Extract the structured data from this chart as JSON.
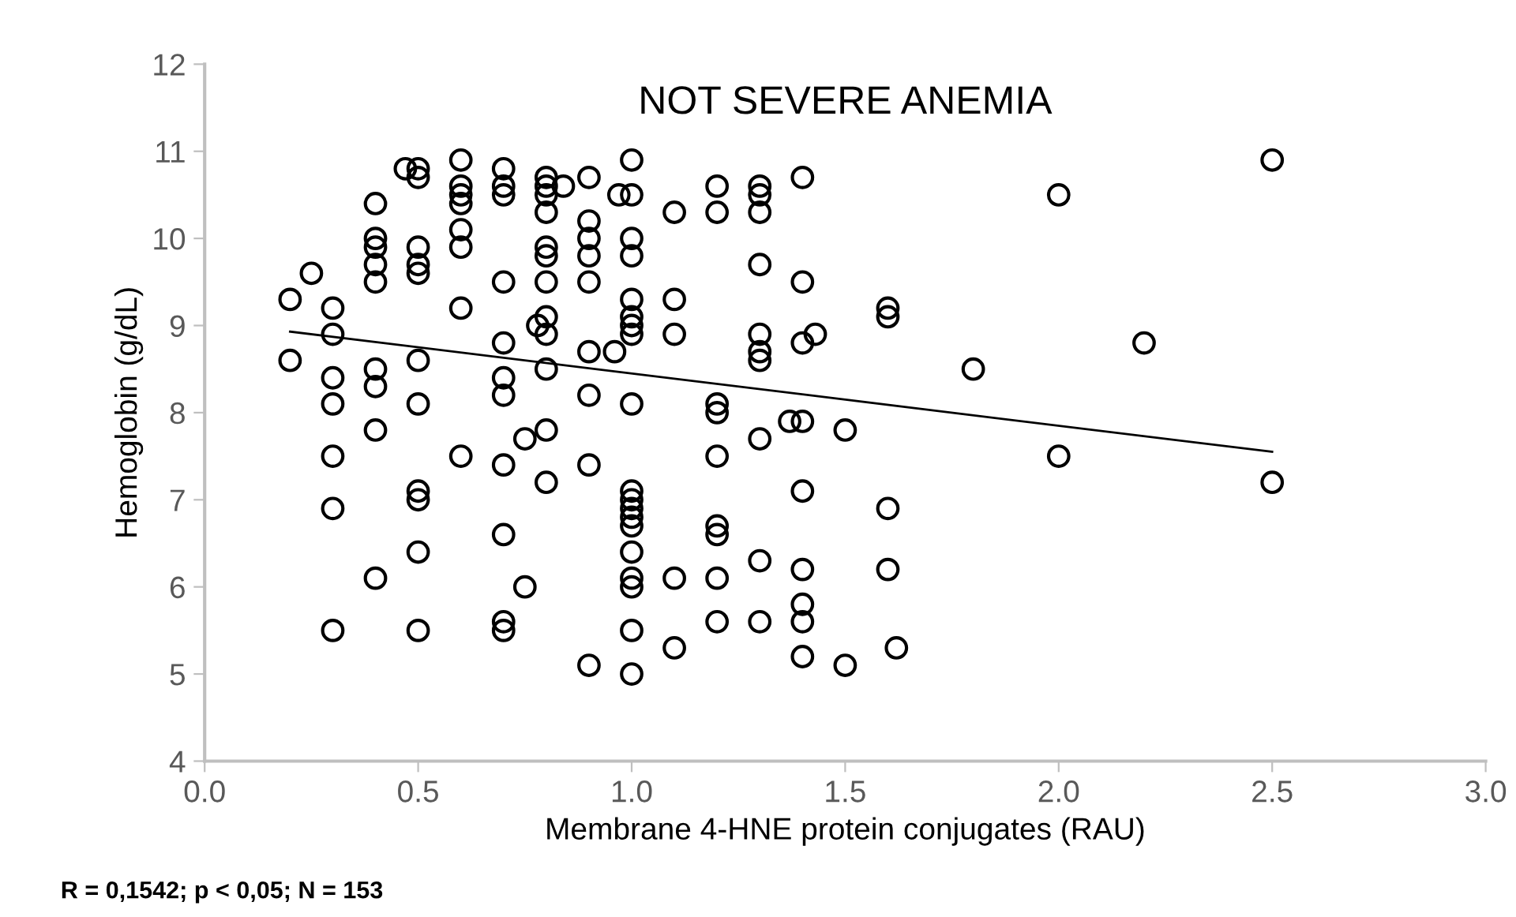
{
  "chart_data": {
    "type": "scatter",
    "title": "NOT SEVERE ANEMIA",
    "xlabel": "Membrane 4-HNE protein conjugates (RAU)",
    "ylabel": "Hemoglobin (g/dL)",
    "annotations": [
      "R = 0,1542; p < 0,05; N = 153"
    ],
    "xlim": [
      0,
      3
    ],
    "xticks": [
      {
        "value": 0,
        "label": "0.0"
      },
      {
        "value": 0.5,
        "label": "0.5"
      },
      {
        "value": 1,
        "label": "1.0"
      },
      {
        "value": 1.5,
        "label": "1.5"
      },
      {
        "value": 2,
        "label": "2.0"
      },
      {
        "value": 2.5,
        "label": "2.5"
      },
      {
        "value": 3,
        "label": "3.0"
      }
    ],
    "ylim": [
      4,
      12
    ],
    "yticks": [
      4,
      5,
      6,
      7,
      8,
      9,
      10,
      11,
      12
    ],
    "grid": false,
    "marker": "circle",
    "series": [
      {
        "color": "#000000",
        "x": [
          0.2,
          0.2,
          0.25,
          0.3,
          0.3,
          0.3,
          0.3,
          0.3,
          0.3,
          0.3,
          0.4,
          0.4,
          0.4,
          0.4,
          0.4,
          0.4,
          0.4,
          0.4,
          0.4,
          0.47,
          0.5,
          0.5,
          0.5,
          0.5,
          0.5,
          0.5,
          0.5,
          0.5,
          0.5,
          0.5,
          0.5,
          0.6,
          0.6,
          0.6,
          0.6,
          0.6,
          0.6,
          0.6,
          0.6,
          0.7,
          0.7,
          0.7,
          0.7,
          0.7,
          0.7,
          0.7,
          0.7,
          0.7,
          0.7,
          0.7,
          0.75,
          0.75,
          0.78,
          0.8,
          0.8,
          0.8,
          0.8,
          0.8,
          0.8,
          0.8,
          0.8,
          0.8,
          0.8,
          0.8,
          0.8,
          0.84,
          0.9,
          0.9,
          0.9,
          0.9,
          0.9,
          0.9,
          0.9,
          0.9,
          0.9,
          0.96,
          1.0,
          1.0,
          1.0,
          1.0,
          1.0,
          1.0,
          1.0,
          1.0,
          1.0,
          1.0,
          1.0,
          1.0,
          1.0,
          1.0,
          1.0,
          1.0,
          1.0,
          1.0,
          1.0,
          0.97,
          1.1,
          1.1,
          1.1,
          1.1,
          1.1,
          1.2,
          1.2,
          1.2,
          1.2,
          1.2,
          1.2,
          1.2,
          1.2,
          1.2,
          1.3,
          1.3,
          1.3,
          1.3,
          1.3,
          1.3,
          1.3,
          1.3,
          1.3,
          1.3,
          1.37,
          1.4,
          1.4,
          1.4,
          1.4,
          1.4,
          1.4,
          1.4,
          1.4,
          1.4,
          1.43,
          1.5,
          1.5,
          1.6,
          1.6,
          1.6,
          1.6,
          1.62,
          1.8,
          2.0,
          2.0,
          2.2,
          2.5,
          2.5
        ],
        "values": [
          9.3,
          8.6,
          9.6,
          9.2,
          8.9,
          8.4,
          8.1,
          7.5,
          6.9,
          5.5,
          10.4,
          10.0,
          9.9,
          9.7,
          9.5,
          8.5,
          8.3,
          7.8,
          6.1,
          10.8,
          10.8,
          10.7,
          9.9,
          9.7,
          9.6,
          8.6,
          8.1,
          7.1,
          7.0,
          6.4,
          5.5,
          10.9,
          10.6,
          10.5,
          10.4,
          10.1,
          9.9,
          9.2,
          7.5,
          10.8,
          10.6,
          10.5,
          9.5,
          8.8,
          8.4,
          8.2,
          7.4,
          6.6,
          5.6,
          5.5,
          7.7,
          6.0,
          9.0,
          10.7,
          10.6,
          10.5,
          10.3,
          9.9,
          9.8,
          9.5,
          9.1,
          8.9,
          8.5,
          7.8,
          7.2,
          10.6,
          10.7,
          10.2,
          10.0,
          9.8,
          9.5,
          8.7,
          8.2,
          7.4,
          5.1,
          8.7,
          10.9,
          10.5,
          10.0,
          9.8,
          9.3,
          9.1,
          9.0,
          8.9,
          8.1,
          7.1,
          7.0,
          6.9,
          6.8,
          6.7,
          6.4,
          6.1,
          6.0,
          5.5,
          5.0,
          10.5,
          10.3,
          9.3,
          8.9,
          6.1,
          5.3,
          10.6,
          10.3,
          8.1,
          8.0,
          7.5,
          6.7,
          6.6,
          6.1,
          5.6,
          10.6,
          10.5,
          10.3,
          9.7,
          8.9,
          8.7,
          8.6,
          7.7,
          6.3,
          5.6,
          7.9,
          10.7,
          9.5,
          8.8,
          7.9,
          7.1,
          6.2,
          5.8,
          5.6,
          5.2,
          8.9,
          7.8,
          5.1,
          9.2,
          9.1,
          6.9,
          6.2,
          5.3,
          8.5,
          10.5,
          7.5,
          8.8,
          10.9,
          7.2
        ]
      },
      {
        "type": "line",
        "color": "#000000",
        "marker": "none",
        "x": [
          0.2,
          2.5
        ],
        "values": [
          8.93,
          7.55
        ]
      }
    ]
  }
}
